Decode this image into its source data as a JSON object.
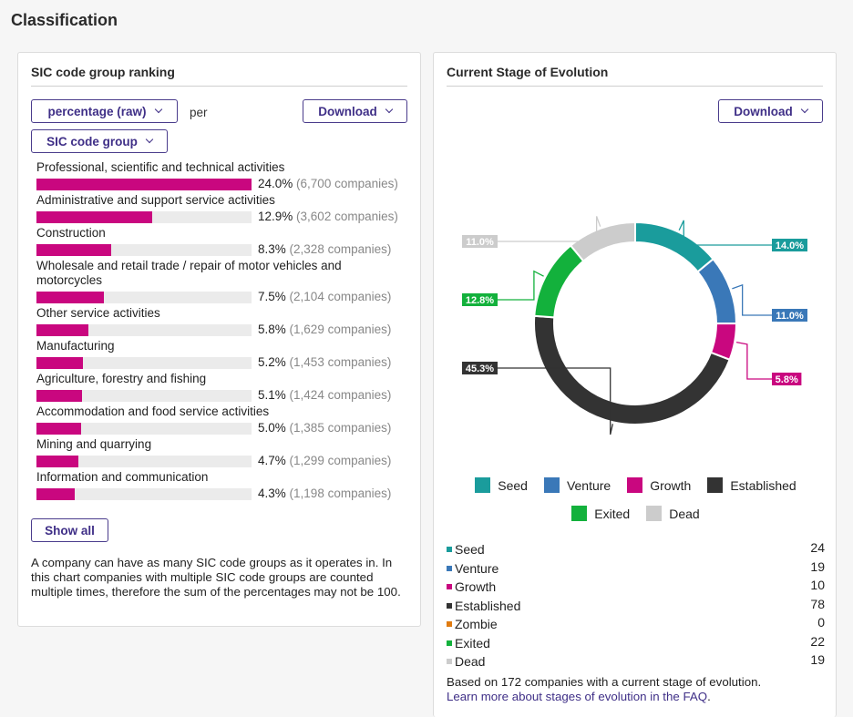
{
  "page": {
    "title": "Classification"
  },
  "left_panel": {
    "title": "SIC code group ranking",
    "metric_select": "percentage (raw)",
    "per_label": "per",
    "group_select": "SIC code group",
    "download_label": "Download",
    "show_all_label": "Show all",
    "footnote": "A company can have as many SIC code groups as it operates in. In this chart companies with multiple SIC code groups are counted multiple times, therefore the sum of the percentages may not be 100.",
    "bar_color": "#c9077f",
    "items": [
      {
        "label": "Professional, scientific and technical activities",
        "pct": 24.0,
        "pct_text": "24.0%",
        "count_text": "(6,700 companies)"
      },
      {
        "label": "Administrative and support service activities",
        "pct": 12.9,
        "pct_text": "12.9%",
        "count_text": "(3,602 companies)"
      },
      {
        "label": "Construction",
        "pct": 8.3,
        "pct_text": "8.3%",
        "count_text": "(2,328 companies)"
      },
      {
        "label": "Wholesale and retail trade / repair of motor vehicles and motorcycles",
        "pct": 7.5,
        "pct_text": "7.5%",
        "count_text": "(2,104 companies)"
      },
      {
        "label": "Other service activities",
        "pct": 5.8,
        "pct_text": "5.8%",
        "count_text": "(1,629 companies)"
      },
      {
        "label": "Manufacturing",
        "pct": 5.2,
        "pct_text": "5.2%",
        "count_text": "(1,453 companies)"
      },
      {
        "label": "Agriculture, forestry and fishing",
        "pct": 5.1,
        "pct_text": "5.1%",
        "count_text": "(1,424 companies)"
      },
      {
        "label": "Accommodation and food service activities",
        "pct": 5.0,
        "pct_text": "5.0%",
        "count_text": "(1,385 companies)"
      },
      {
        "label": "Mining and quarrying",
        "pct": 4.7,
        "pct_text": "4.7%",
        "count_text": "(1,299 companies)"
      },
      {
        "label": "Information and communication",
        "pct": 4.3,
        "pct_text": "4.3%",
        "count_text": "(1,198 companies)"
      }
    ]
  },
  "right_panel": {
    "title": "Current Stage of Evolution",
    "download_label": "Download",
    "legend_row1": [
      "Seed",
      "Venture",
      "Growth",
      "Established"
    ],
    "legend_row2": [
      "Exited",
      "Dead"
    ],
    "stages": [
      {
        "name": "Seed",
        "count": 24,
        "color": "#1a9c9c"
      },
      {
        "name": "Venture",
        "count": 19,
        "color": "#3a78b8"
      },
      {
        "name": "Growth",
        "count": 10,
        "color": "#c9077f"
      },
      {
        "name": "Established",
        "count": 78,
        "color": "#333333"
      },
      {
        "name": "Zombie",
        "count": 0,
        "color": "#e07b10"
      },
      {
        "name": "Exited",
        "count": 22,
        "color": "#13b13c"
      },
      {
        "name": "Dead",
        "count": 19,
        "color": "#cccccc"
      }
    ],
    "based_on": "Based on 172 companies with a current stage of evolution.",
    "faq_link": "Learn more about stages of evolution in the FAQ",
    "faq_suffix": "."
  },
  "chart_data": {
    "type": "pie",
    "title": "Current Stage of Evolution",
    "categories": [
      "Seed",
      "Venture",
      "Growth",
      "Established",
      "Exited",
      "Dead"
    ],
    "values": [
      14.0,
      11.0,
      5.8,
      45.3,
      12.8,
      11.0
    ],
    "labels": [
      "14.0%",
      "11.0%",
      "5.8%",
      "45.3%",
      "12.8%",
      "11.0%"
    ],
    "colors": [
      "#1a9c9c",
      "#3a78b8",
      "#c9077f",
      "#333333",
      "#13b13c",
      "#cccccc"
    ],
    "legend": "bottom"
  }
}
